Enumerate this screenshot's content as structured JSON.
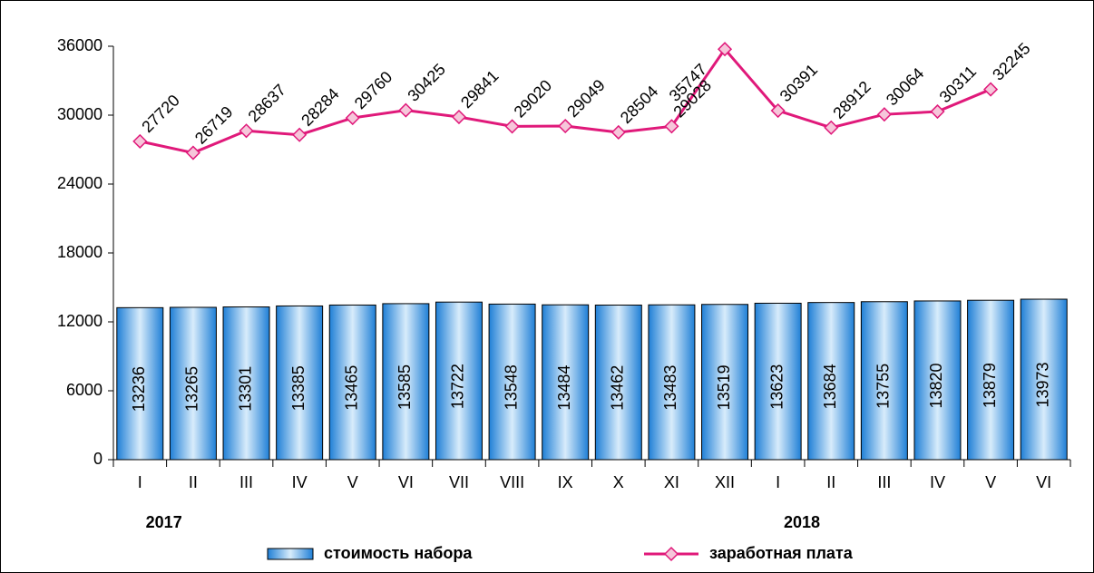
{
  "chart_data": {
    "type": "bar_line",
    "categories": [
      "I",
      "II",
      "III",
      "IV",
      "V",
      "VI",
      "VII",
      "VIII",
      "IX",
      "X",
      "XI",
      "XII",
      "I",
      "II",
      "III",
      "IV",
      "V",
      "VI"
    ],
    "groups": [
      {
        "name": "2017",
        "size": 12
      },
      {
        "name": "2018",
        "size": 6
      }
    ],
    "series": [
      {
        "name": "стоимость набора",
        "type": "bar",
        "color": "#3a9ae0",
        "values": [
          13236,
          13265,
          13301,
          13385,
          13465,
          13585,
          13722,
          13548,
          13484,
          13462,
          13483,
          13519,
          13623,
          13684,
          13755,
          13820,
          13879,
          13973
        ]
      },
      {
        "name": "заработная плата",
        "type": "line",
        "color": "#e0197a",
        "values": [
          27720,
          26719,
          28637,
          28284,
          29760,
          30425,
          29841,
          29020,
          29049,
          28504,
          29028,
          35747,
          30391,
          28912,
          30064,
          30311,
          32245,
          null
        ]
      }
    ],
    "ylim": [
      0,
      36000
    ],
    "yticks": [
      0,
      6000,
      12000,
      18000,
      24000,
      30000,
      36000
    ],
    "legend": "bottom"
  }
}
